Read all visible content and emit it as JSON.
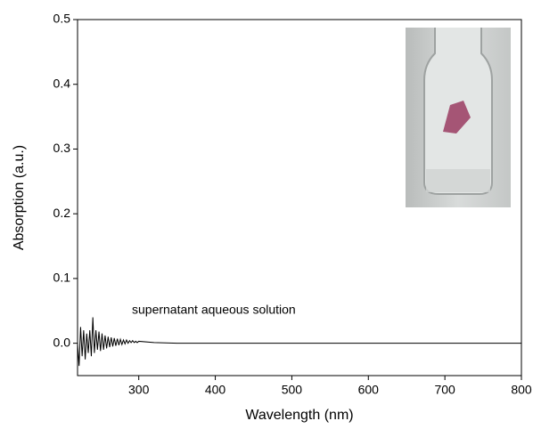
{
  "chart_data": {
    "type": "line",
    "xlabel": "Wavelength (nm)",
    "ylabel": "Absorption (a.u.)",
    "annotation": "supernatant aqueous solution",
    "color": "#000000",
    "x": [
      220,
      222,
      224,
      226,
      228,
      230,
      232,
      234,
      236,
      238,
      240,
      242,
      244,
      246,
      248,
      250,
      252,
      254,
      256,
      258,
      260,
      262,
      264,
      266,
      268,
      270,
      272,
      274,
      276,
      278,
      280,
      282,
      284,
      286,
      288,
      290,
      292,
      294,
      296,
      298,
      300,
      320,
      350,
      400,
      500,
      600,
      700,
      800
    ],
    "values": [
      0.0,
      -0.035,
      0.025,
      -0.02,
      0.02,
      -0.025,
      0.015,
      -0.015,
      0.02,
      -0.02,
      0.04,
      -0.015,
      0.02,
      -0.01,
      0.018,
      -0.012,
      0.015,
      -0.01,
      0.012,
      -0.008,
      0.01,
      -0.006,
      0.009,
      -0.005,
      0.008,
      -0.004,
      0.007,
      -0.003,
      0.006,
      -0.002,
      0.005,
      -0.001,
      0.005,
      0.0,
      0.004,
      0.001,
      0.004,
      0.001,
      0.003,
      0.001,
      0.003,
      0.001,
      0.0,
      0.0,
      0.0,
      0.0,
      0.0,
      0.0
    ],
    "xlim": [
      220,
      800
    ],
    "xticks": [
      300,
      400,
      500,
      600,
      700,
      800
    ],
    "ylim": [
      -0.05,
      0.5
    ],
    "yticks": [
      {
        "value": 0,
        "label": "0.0"
      },
      0.1,
      0.2,
      0.3,
      0.4,
      0.5
    ]
  }
}
